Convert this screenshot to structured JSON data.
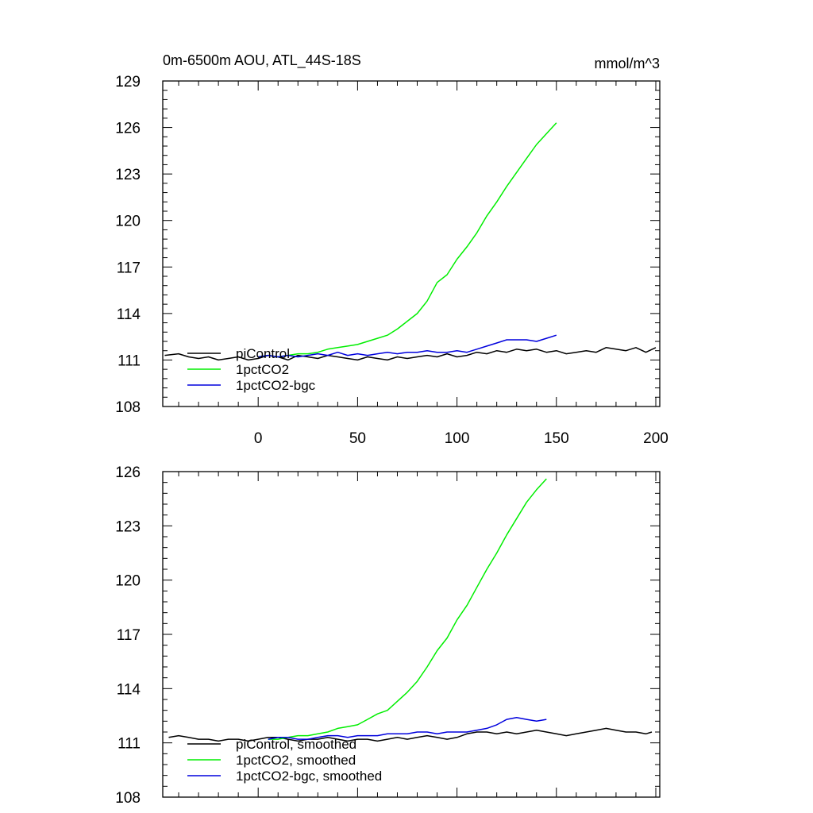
{
  "chart_data": [
    {
      "type": "line",
      "title": "0m-6500m AOU, ATL_44S-18S",
      "units": "mmol/m^3",
      "xlim": [
        -48,
        202
      ],
      "ylim": [
        108,
        129
      ],
      "x_ticks": [
        0,
        50,
        100,
        150,
        200
      ],
      "y_ticks": [
        108,
        111,
        114,
        117,
        120,
        123,
        126,
        129
      ],
      "x_tick_labels_shown": true,
      "legend_position": "bottom-left",
      "series": [
        {
          "name": "piControl",
          "color": "#000000",
          "points": [
            [
              -47,
              111.3
            ],
            [
              -40,
              111.4
            ],
            [
              -35,
              111.2
            ],
            [
              -30,
              111.1
            ],
            [
              -25,
              111.2
            ],
            [
              -20,
              111.0
            ],
            [
              -15,
              111.1
            ],
            [
              -10,
              111.2
            ],
            [
              -5,
              111.0
            ],
            [
              0,
              111.1
            ],
            [
              5,
              111.3
            ],
            [
              10,
              111.2
            ],
            [
              15,
              111.0
            ],
            [
              20,
              111.3
            ],
            [
              25,
              111.2
            ],
            [
              30,
              111.1
            ],
            [
              35,
              111.3
            ],
            [
              40,
              111.2
            ],
            [
              45,
              111.1
            ],
            [
              50,
              111.0
            ],
            [
              55,
              111.2
            ],
            [
              60,
              111.1
            ],
            [
              65,
              111.0
            ],
            [
              70,
              111.2
            ],
            [
              75,
              111.1
            ],
            [
              80,
              111.2
            ],
            [
              85,
              111.3
            ],
            [
              90,
              111.2
            ],
            [
              95,
              111.4
            ],
            [
              100,
              111.2
            ],
            [
              105,
              111.3
            ],
            [
              110,
              111.5
            ],
            [
              115,
              111.4
            ],
            [
              120,
              111.6
            ],
            [
              125,
              111.5
            ],
            [
              130,
              111.7
            ],
            [
              135,
              111.6
            ],
            [
              140,
              111.7
            ],
            [
              145,
              111.5
            ],
            [
              150,
              111.6
            ],
            [
              155,
              111.4
            ],
            [
              160,
              111.5
            ],
            [
              165,
              111.6
            ],
            [
              170,
              111.5
            ],
            [
              175,
              111.8
            ],
            [
              180,
              111.7
            ],
            [
              185,
              111.6
            ],
            [
              190,
              111.8
            ],
            [
              195,
              111.5
            ],
            [
              200,
              111.8
            ]
          ]
        },
        {
          "name": "1pctCO2",
          "color": "#00ee00",
          "points": [
            [
              0,
              111.2
            ],
            [
              5,
              111.3
            ],
            [
              10,
              111.2
            ],
            [
              15,
              111.3
            ],
            [
              20,
              111.4
            ],
            [
              25,
              111.4
            ],
            [
              30,
              111.5
            ],
            [
              35,
              111.7
            ],
            [
              40,
              111.8
            ],
            [
              45,
              111.9
            ],
            [
              50,
              112.0
            ],
            [
              55,
              112.2
            ],
            [
              60,
              112.4
            ],
            [
              65,
              112.6
            ],
            [
              70,
              113.0
            ],
            [
              75,
              113.5
            ],
            [
              80,
              114.0
            ],
            [
              85,
              114.8
            ],
            [
              90,
              116.0
            ],
            [
              95,
              116.5
            ],
            [
              100,
              117.5
            ],
            [
              105,
              118.3
            ],
            [
              110,
              119.2
            ],
            [
              115,
              120.3
            ],
            [
              120,
              121.2
            ],
            [
              125,
              122.2
            ],
            [
              130,
              123.1
            ],
            [
              135,
              124.0
            ],
            [
              140,
              124.9
            ],
            [
              145,
              125.6
            ],
            [
              150,
              126.3
            ]
          ]
        },
        {
          "name": "1pctCO2-bgc",
          "color": "#0000dd",
          "points": [
            [
              0,
              111.2
            ],
            [
              5,
              111.3
            ],
            [
              10,
              111.2
            ],
            [
              15,
              111.3
            ],
            [
              20,
              111.2
            ],
            [
              25,
              111.3
            ],
            [
              30,
              111.4
            ],
            [
              35,
              111.3
            ],
            [
              40,
              111.5
            ],
            [
              45,
              111.3
            ],
            [
              50,
              111.4
            ],
            [
              55,
              111.3
            ],
            [
              60,
              111.4
            ],
            [
              65,
              111.5
            ],
            [
              70,
              111.4
            ],
            [
              75,
              111.5
            ],
            [
              80,
              111.5
            ],
            [
              85,
              111.6
            ],
            [
              90,
              111.5
            ],
            [
              95,
              111.5
            ],
            [
              100,
              111.6
            ],
            [
              105,
              111.5
            ],
            [
              110,
              111.7
            ],
            [
              115,
              111.9
            ],
            [
              120,
              112.1
            ],
            [
              125,
              112.3
            ],
            [
              130,
              112.3
            ],
            [
              135,
              112.3
            ],
            [
              140,
              112.2
            ],
            [
              145,
              112.4
            ],
            [
              150,
              112.6
            ]
          ]
        }
      ]
    },
    {
      "type": "line",
      "xlim": [
        -48,
        202
      ],
      "ylim": [
        108,
        126
      ],
      "x_ticks": [
        0,
        50,
        100,
        150,
        200
      ],
      "y_ticks": [
        108,
        111,
        114,
        117,
        120,
        123,
        126
      ],
      "x_tick_labels_shown": false,
      "legend_position": "bottom-left",
      "series": [
        {
          "name": "piControl, smoothed",
          "color": "#000000",
          "points": [
            [
              -45,
              111.3
            ],
            [
              -40,
              111.4
            ],
            [
              -35,
              111.3
            ],
            [
              -30,
              111.2
            ],
            [
              -25,
              111.2
            ],
            [
              -20,
              111.1
            ],
            [
              -15,
              111.2
            ],
            [
              -10,
              111.2
            ],
            [
              -5,
              111.1
            ],
            [
              0,
              111.2
            ],
            [
              5,
              111.3
            ],
            [
              10,
              111.3
            ],
            [
              15,
              111.2
            ],
            [
              20,
              111.1
            ],
            [
              25,
              111.2
            ],
            [
              30,
              111.2
            ],
            [
              35,
              111.3
            ],
            [
              40,
              111.2
            ],
            [
              45,
              111.1
            ],
            [
              50,
              111.2
            ],
            [
              55,
              111.2
            ],
            [
              60,
              111.1
            ],
            [
              65,
              111.2
            ],
            [
              70,
              111.3
            ],
            [
              75,
              111.2
            ],
            [
              80,
              111.3
            ],
            [
              85,
              111.4
            ],
            [
              90,
              111.3
            ],
            [
              95,
              111.2
            ],
            [
              100,
              111.3
            ],
            [
              105,
              111.5
            ],
            [
              110,
              111.6
            ],
            [
              115,
              111.6
            ],
            [
              120,
              111.5
            ],
            [
              125,
              111.6
            ],
            [
              130,
              111.5
            ],
            [
              135,
              111.6
            ],
            [
              140,
              111.7
            ],
            [
              145,
              111.6
            ],
            [
              150,
              111.5
            ],
            [
              155,
              111.4
            ],
            [
              160,
              111.5
            ],
            [
              165,
              111.6
            ],
            [
              170,
              111.7
            ],
            [
              175,
              111.8
            ],
            [
              180,
              111.7
            ],
            [
              185,
              111.6
            ],
            [
              190,
              111.6
            ],
            [
              195,
              111.5
            ],
            [
              198,
              111.6
            ]
          ]
        },
        {
          "name": "1pctCO2, smoothed",
          "color": "#00ee00",
          "points": [
            [
              5,
              111.2
            ],
            [
              10,
              111.2
            ],
            [
              15,
              111.3
            ],
            [
              20,
              111.4
            ],
            [
              25,
              111.4
            ],
            [
              30,
              111.5
            ],
            [
              35,
              111.6
            ],
            [
              40,
              111.8
            ],
            [
              45,
              111.9
            ],
            [
              50,
              112.0
            ],
            [
              55,
              112.3
            ],
            [
              60,
              112.6
            ],
            [
              65,
              112.8
            ],
            [
              70,
              113.3
            ],
            [
              75,
              113.8
            ],
            [
              80,
              114.4
            ],
            [
              85,
              115.2
            ],
            [
              90,
              116.1
            ],
            [
              95,
              116.8
            ],
            [
              100,
              117.8
            ],
            [
              105,
              118.6
            ],
            [
              110,
              119.6
            ],
            [
              115,
              120.6
            ],
            [
              120,
              121.5
            ],
            [
              125,
              122.5
            ],
            [
              130,
              123.4
            ],
            [
              135,
              124.3
            ],
            [
              140,
              125.0
            ],
            [
              145,
              125.6
            ]
          ]
        },
        {
          "name": "1pctCO2-bgc, smoothed",
          "color": "#0000dd",
          "points": [
            [
              5,
              111.2
            ],
            [
              10,
              111.3
            ],
            [
              15,
              111.3
            ],
            [
              20,
              111.2
            ],
            [
              25,
              111.2
            ],
            [
              30,
              111.3
            ],
            [
              35,
              111.4
            ],
            [
              40,
              111.4
            ],
            [
              45,
              111.3
            ],
            [
              50,
              111.4
            ],
            [
              55,
              111.4
            ],
            [
              60,
              111.4
            ],
            [
              65,
              111.5
            ],
            [
              70,
              111.5
            ],
            [
              75,
              111.5
            ],
            [
              80,
              111.6
            ],
            [
              85,
              111.6
            ],
            [
              90,
              111.5
            ],
            [
              95,
              111.6
            ],
            [
              100,
              111.6
            ],
            [
              105,
              111.6
            ],
            [
              110,
              111.7
            ],
            [
              115,
              111.8
            ],
            [
              120,
              112.0
            ],
            [
              125,
              112.3
            ],
            [
              130,
              112.4
            ],
            [
              135,
              112.3
            ],
            [
              140,
              112.2
            ],
            [
              145,
              112.3
            ]
          ]
        }
      ]
    }
  ]
}
